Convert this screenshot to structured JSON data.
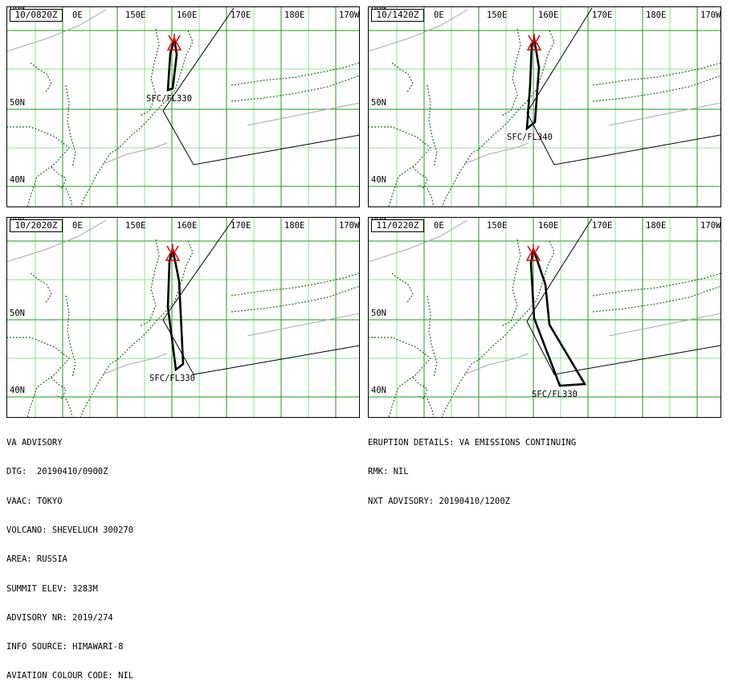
{
  "panels": [
    {
      "time": "10/0820Z",
      "label": "SFC/FL330",
      "plume": [
        [
          217,
          48
        ],
        [
          220,
          68
        ],
        [
          215,
          110
        ],
        [
          209,
          112
        ],
        [
          212,
          67
        ]
      ]
    },
    {
      "time": "10/1420Z",
      "label": "SFC/FL340",
      "plume": [
        [
          665,
          48
        ],
        [
          671,
          84
        ],
        [
          666,
          152
        ],
        [
          656,
          160
        ],
        [
          660,
          106
        ],
        [
          662,
          56
        ]
      ]
    },
    {
      "time": "10/2020Z",
      "label": "SFC/FL330",
      "plume": [
        [
          215,
          310
        ],
        [
          223,
          350
        ],
        [
          228,
          453
        ],
        [
          219,
          460
        ],
        [
          209,
          382
        ],
        [
          211,
          325
        ]
      ]
    },
    {
      "time": "11/0220Z",
      "label": "SFC/FL330",
      "plume": [
        [
          664,
          310
        ],
        [
          679,
          354
        ],
        [
          684,
          404
        ],
        [
          728,
          478
        ],
        [
          697,
          480
        ],
        [
          665,
          396
        ],
        [
          661,
          328
        ]
      ]
    }
  ],
  "panel_boundaries": [
    [
      [
        291,
        10
      ],
      [
        203,
        138
      ],
      [
        241,
        205
      ],
      [
        448,
        168
      ]
    ],
    [
      [
        737,
        10
      ],
      [
        656,
        140
      ],
      [
        690,
        205
      ],
      [
        897,
        168
      ]
    ],
    [
      [
        291,
        272
      ],
      [
        203,
        398
      ],
      [
        241,
        466
      ],
      [
        448,
        430
      ]
    ],
    [
      [
        737,
        272
      ],
      [
        656,
        400
      ],
      [
        690,
        466
      ],
      [
        897,
        430
      ]
    ]
  ],
  "axes": {
    "lon_labels": [
      "0E",
      "150E",
      "160E",
      "170E",
      "180E",
      "170W"
    ],
    "lat_labels": [
      "60N",
      "50N",
      "40N"
    ]
  },
  "advisory_left": [
    "VA ADVISORY",
    "DTG:  20190410/0900Z",
    "VAAC: TOKYO",
    "VOLCANO: SHEVELUCH 300270",
    "AREA: RUSSIA",
    "SUMMIT ELEV: 3283M",
    "ADVISORY NR: 2019/274",
    "INFO SOURCE: HIMAWARI-8",
    "AVIATION COLOUR CODE: NIL"
  ],
  "advisory_right": [
    "ERUPTION DETAILS: VA EMISSIONS CONTINUING",
    "RMK: NIL",
    "NXT ADVISORY: 20190410/1200Z"
  ],
  "colors": {
    "grid": "#1f9a1f",
    "graticule_minor": "#8ee08e",
    "coast": "#1a6e1a",
    "volcano": "#e00000",
    "plume": "#000000",
    "boundary": "#000000",
    "fir_line": "#a8a8a8"
  },
  "icons": {
    "volcano": "volcano-symbol-icon"
  }
}
